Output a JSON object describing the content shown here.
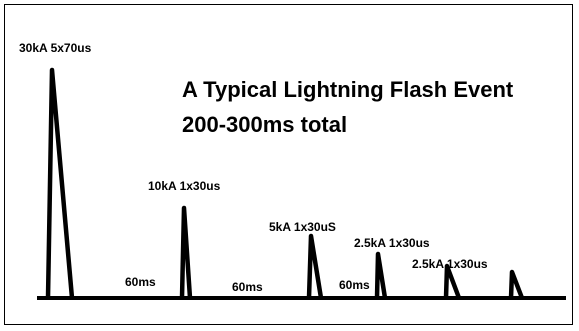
{
  "title_line1": "A Typical Lightning Flash Event",
  "title_line2": "200-300ms total",
  "pulses": [
    {
      "label": "30kA 5x70us"
    },
    {
      "label": "10kA 1x30us"
    },
    {
      "label": "5kA 1x30uS"
    },
    {
      "label": "2.5kA 1x30us"
    },
    {
      "label": "2.5kA 1x30us"
    }
  ],
  "gaps": [
    "60ms",
    "60ms",
    "60ms"
  ],
  "colors": {
    "stroke": "#000000",
    "background": "#ffffff"
  }
}
